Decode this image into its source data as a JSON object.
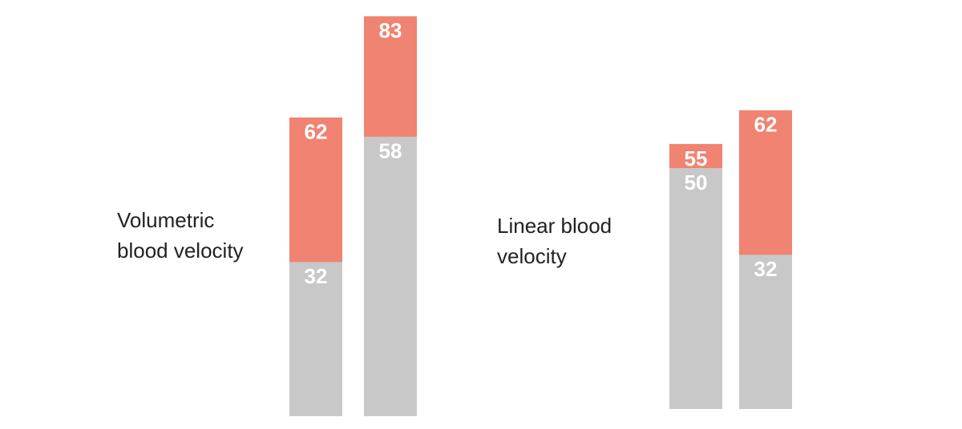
{
  "chart_data": [
    {
      "type": "bar",
      "title": "Volumetric blood velocity",
      "overlay": true,
      "categories": [
        null,
        null
      ],
      "series": [
        {
          "color": "#f08371",
          "values": [
            62,
            83
          ]
        },
        {
          "color": "#c8c8c8",
          "values": [
            32,
            58
          ]
        }
      ]
    },
    {
      "type": "bar",
      "title": "Linear blood velocity",
      "overlay": true,
      "categories": [
        null,
        null
      ],
      "series": [
        {
          "color": "#f08371",
          "values": [
            55,
            62
          ]
        },
        {
          "color": "#c8c8c8",
          "values": [
            50,
            32
          ]
        }
      ]
    }
  ]
}
